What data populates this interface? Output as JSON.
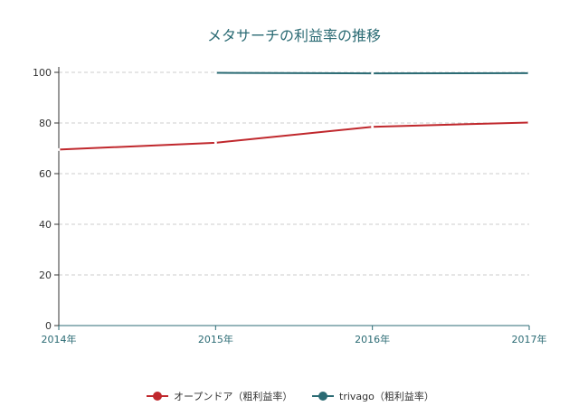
{
  "chart_data": {
    "type": "line",
    "title": "メタサーチの利益率の推移",
    "xlabel": "",
    "ylabel": "",
    "categories": [
      "2014年",
      "2015年",
      "2016年",
      "2017年"
    ],
    "series": [
      {
        "name": "オープンドア（粗利益率）",
        "values": [
          69.5,
          72.2,
          78.5,
          80.2
        ],
        "color": "#c0282d"
      },
      {
        "name": "trivago（粗利益率）",
        "values": [
          null,
          99.8,
          99.6,
          99.7
        ],
        "color": "#2b6b74"
      }
    ],
    "ylim": [
      0,
      100
    ],
    "yticks": [
      0,
      20,
      40,
      60,
      80,
      100
    ],
    "grid": true,
    "legend": "bottom-center"
  }
}
